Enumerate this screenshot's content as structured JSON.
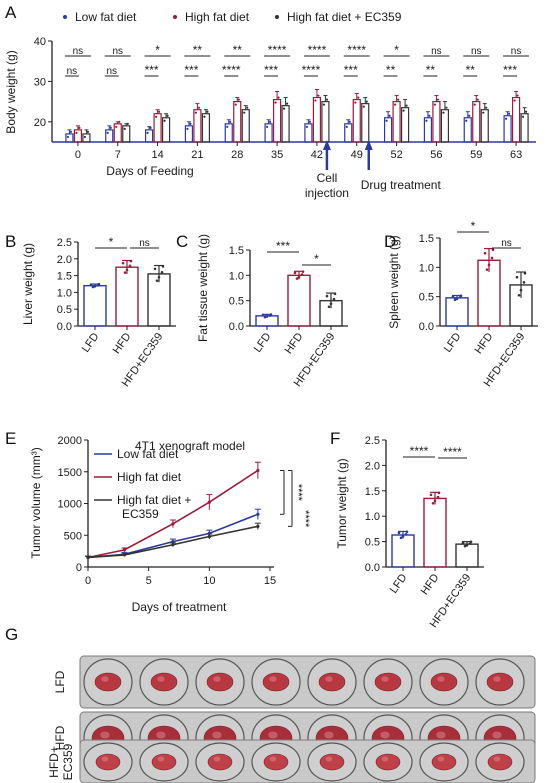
{
  "colors": {
    "lfd": "#2b3a9c",
    "hfd": "#9b1b3a",
    "ec": "#333333"
  },
  "panels": {
    "A": {
      "letter": "A"
    },
    "B": {
      "letter": "B"
    },
    "C": {
      "letter": "C"
    },
    "D": {
      "letter": "D"
    },
    "E": {
      "letter": "E"
    },
    "F": {
      "letter": "F"
    },
    "G": {
      "letter": "G"
    }
  },
  "annotations": {
    "cell_injection": [
      "Cell",
      "injection"
    ],
    "drug_treatment": "Drug treatment"
  },
  "photo_rows": [
    "LFD",
    "HFD",
    "HFD+ EC359"
  ],
  "chart_data": [
    {
      "id": "A",
      "type": "bar",
      "legend": [
        "Low fat diet",
        "High fat diet",
        "High fat diet + EC359"
      ],
      "legend_position": "top",
      "xlabel": "Days of Feeding",
      "ylabel": "Body weight (g)",
      "ylim": [
        15,
        40
      ],
      "yticks": [
        20,
        30,
        40
      ],
      "categories": [
        "0",
        "7",
        "14",
        "21",
        "28",
        "35",
        "42",
        "49",
        "52",
        "56",
        "59",
        "63"
      ],
      "series": [
        {
          "name": "Low fat diet",
          "values": [
            17,
            18,
            18,
            19,
            19.5,
            19.5,
            19.5,
            19.5,
            21,
            21,
            21,
            21.5
          ],
          "errors": [
            1,
            1,
            0.8,
            1,
            1,
            1,
            1,
            1,
            1.5,
            1.5,
            1.5,
            1
          ]
        },
        {
          "name": "High fat diet",
          "values": [
            18,
            19.5,
            22,
            23,
            25,
            25.5,
            26,
            25.5,
            25,
            25,
            25,
            26
          ],
          "errors": [
            1,
            0.5,
            1,
            1.5,
            1,
            2,
            2,
            1.5,
            1.5,
            1.5,
            1.5,
            1.5
          ]
        },
        {
          "name": "High fat diet + EC359",
          "values": [
            17,
            19,
            21,
            22,
            23,
            24,
            25,
            24.5,
            23.5,
            23,
            23,
            22
          ],
          "errors": [
            1,
            0.5,
            1,
            1,
            1,
            2,
            1.5,
            1.5,
            2,
            2,
            1.5,
            1.5
          ]
        }
      ],
      "significance": {
        "lfd_vs_hfd": [
          "ns",
          "ns",
          "***",
          "***",
          "****",
          "***",
          "****",
          "***",
          "**",
          "**",
          "**",
          "***"
        ],
        "hfd_vs_ec": [
          "ns",
          "ns",
          "*",
          "**",
          "**",
          "****",
          "****",
          "****",
          "*",
          "ns",
          "ns",
          "ns"
        ]
      }
    },
    {
      "id": "B",
      "type": "bar",
      "categories": [
        "LFD",
        "HFD",
        "HFD+EC359"
      ],
      "values": [
        1.2,
        1.75,
        1.55
      ],
      "errors": [
        0.05,
        0.2,
        0.25
      ],
      "ylabel": "Liver weight (g)",
      "ylim": [
        0,
        2.5
      ],
      "yticks": [
        0.0,
        0.5,
        1.0,
        1.5,
        2.0,
        2.5
      ],
      "significance": [
        "*",
        "ns"
      ]
    },
    {
      "id": "C",
      "type": "bar",
      "categories": [
        "LFD",
        "HFD",
        "HFD+EC359"
      ],
      "values": [
        0.2,
        1.0,
        0.5
      ],
      "errors": [
        0.03,
        0.08,
        0.15
      ],
      "ylabel": "Fat tissue weight (g)",
      "ylim": [
        0,
        1.5
      ],
      "yticks": [
        0.0,
        0.5,
        1.0,
        1.5
      ],
      "significance": [
        "***",
        "*"
      ]
    },
    {
      "id": "D",
      "type": "bar",
      "categories": [
        "LFD",
        "HFD",
        "HFD+EC359"
      ],
      "values": [
        0.48,
        1.12,
        0.7
      ],
      "errors": [
        0.04,
        0.2,
        0.22
      ],
      "ylabel": "Spleen weight (g)",
      "ylim": [
        0,
        1.5
      ],
      "yticks": [
        0.0,
        0.5,
        1.0,
        1.5
      ],
      "significance": [
        "*",
        "ns"
      ]
    },
    {
      "id": "E",
      "type": "line",
      "title": "4T1 xenograft model",
      "xlabel": "Days of treatment",
      "ylabel": "Tumor volume (mm³)",
      "xlim": [
        0,
        15
      ],
      "xticks": [
        0,
        5,
        10,
        15
      ],
      "ylim": [
        0,
        2000
      ],
      "yticks": [
        0,
        500,
        1000,
        1500,
        2000
      ],
      "x": [
        0,
        3,
        7,
        10,
        14
      ],
      "series": [
        {
          "name": "Low fat diet",
          "values": [
            150,
            200,
            400,
            530,
            830
          ],
          "errors": [
            20,
            30,
            40,
            50,
            80
          ]
        },
        {
          "name": "High fat diet",
          "values": [
            150,
            270,
            680,
            1020,
            1520
          ],
          "errors": [
            20,
            30,
            60,
            120,
            130
          ]
        },
        {
          "name": "High fat diet + EC359",
          "values": [
            150,
            190,
            350,
            480,
            640
          ],
          "errors": [
            20,
            20,
            30,
            40,
            50
          ]
        }
      ],
      "legend_position": "top-left",
      "significance": [
        "****",
        "****"
      ]
    },
    {
      "id": "F",
      "type": "bar",
      "categories": [
        "LFD",
        "HFD",
        "HFD+EC359"
      ],
      "values": [
        0.63,
        1.35,
        0.45
      ],
      "errors": [
        0.07,
        0.12,
        0.05
      ],
      "ylabel": "Tumor weight (g)",
      "ylim": [
        0,
        2.5
      ],
      "yticks": [
        0.0,
        0.5,
        1.0,
        1.5,
        2.0,
        2.5
      ],
      "significance": [
        "****",
        "****"
      ]
    }
  ]
}
